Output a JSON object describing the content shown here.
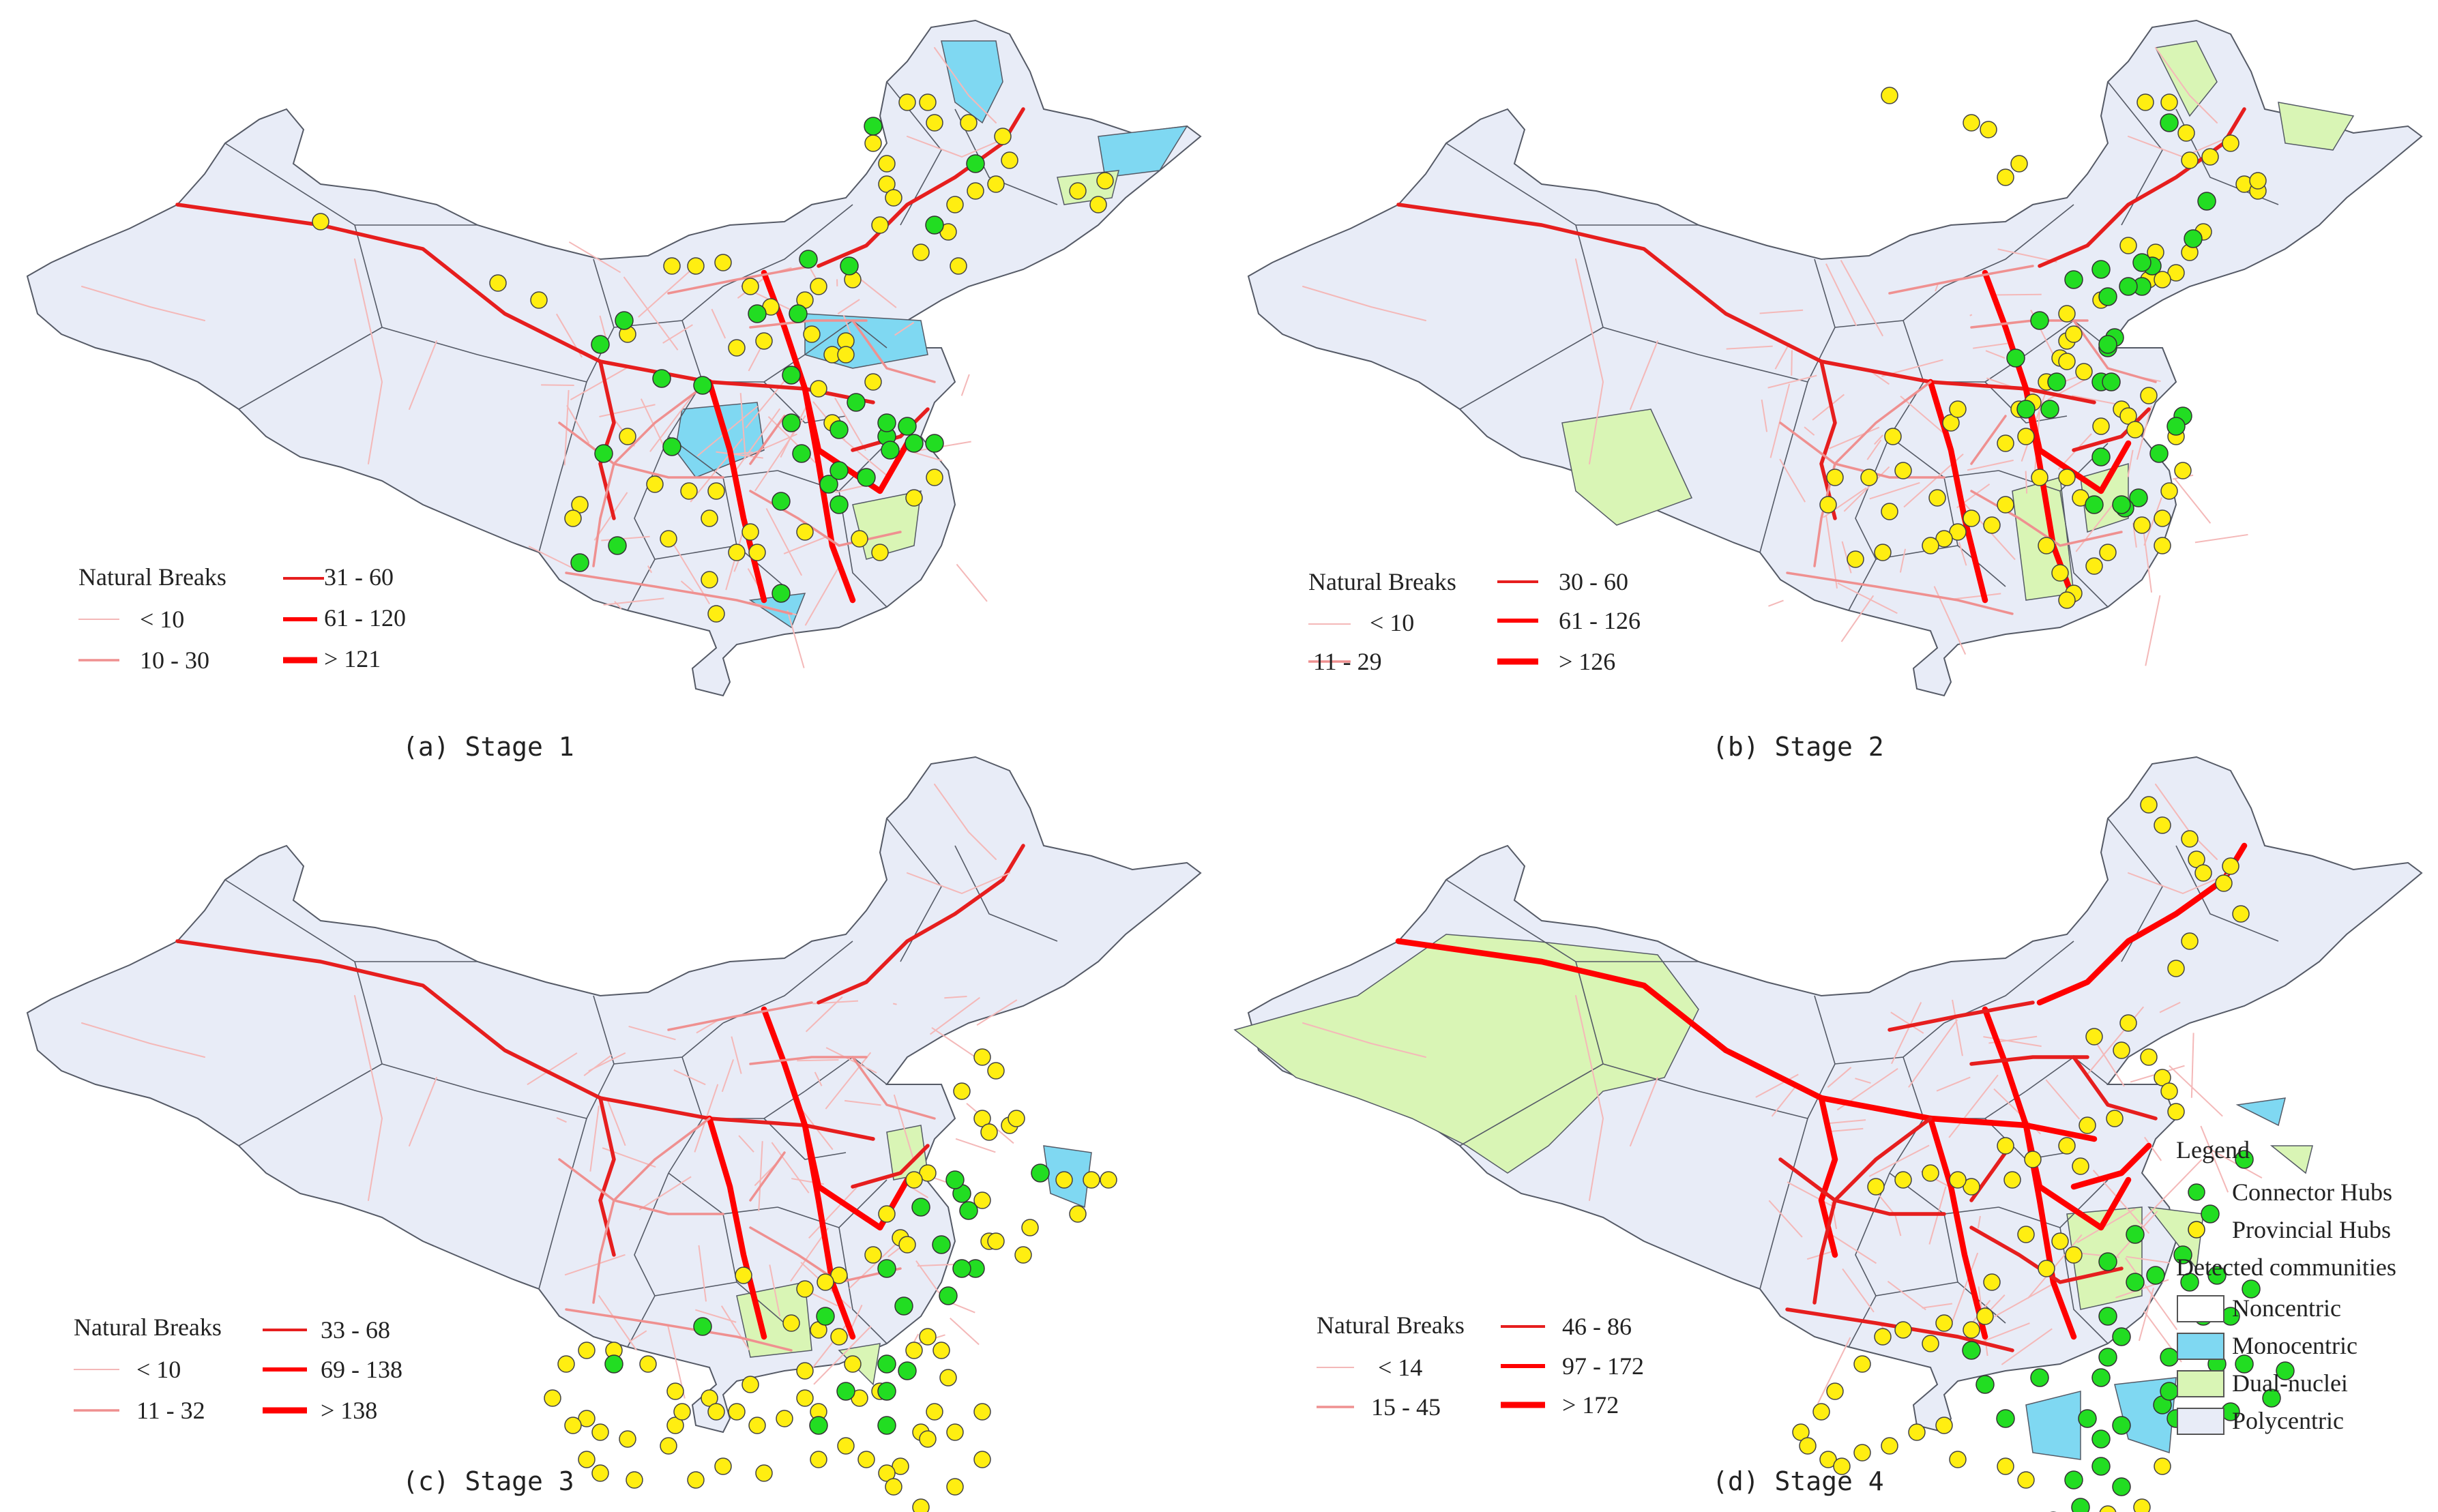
{
  "colors": {
    "provinces": "#e8ecf7",
    "province_border": "#555a66",
    "monocentric": "#7fd8f2",
    "dual_nuclei": "#d9f5b5",
    "line_faint": "#f4b8b8",
    "line_light": "#ef9090",
    "line_mid": "#e61e1e",
    "line_strong": "#ff0000",
    "connector_hub": "#22dd22",
    "provincial_hub": "#ffee11"
  },
  "panels": [
    {
      "caption": "(a) Stage 1",
      "breaks_title": "Natural Breaks",
      "breaks": [
        "< 10",
        "10 - 30",
        "31 - 60",
        "61 - 120",
        "> 121"
      ],
      "connector_hubs": 32,
      "provincial_hubs": 60
    },
    {
      "caption": "(b) Stage 2",
      "breaks_title": "Natural Breaks",
      "breaks": [
        "< 10",
        "11 - 29",
        "30 - 60",
        "61 - 126",
        "> 126"
      ],
      "connector_hubs": 28,
      "provincial_hubs": 70
    },
    {
      "caption": "(c) Stage 3",
      "breaks_title": "Natural Breaks",
      "breaks": [
        "< 10",
        "11 - 32",
        "33 - 68",
        "69 - 138",
        "> 138"
      ],
      "connector_hubs": 20,
      "provincial_hubs": 78
    },
    {
      "caption": "(d) Stage 4",
      "breaks_title": "Natural Breaks",
      "breaks": [
        "< 14",
        "15 - 45",
        "46 - 86",
        "97 - 172",
        "> 172"
      ],
      "connector_hubs": 38,
      "provincial_hubs": 58
    }
  ],
  "legend": {
    "title": "Legend",
    "connector_hubs": "Connector Hubs",
    "provincial_hubs": "Provincial Hubs",
    "communities_title": "Detected communities",
    "noncentric": "Noncentric",
    "monocentric": "Monocentric",
    "dual_nuclei": "Dual-nuclei",
    "polycentric": "Polycentric"
  }
}
